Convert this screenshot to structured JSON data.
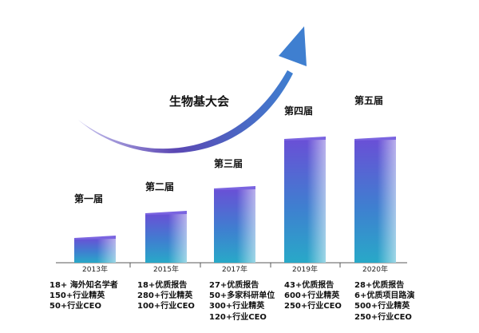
{
  "chart_data": {
    "type": "bar",
    "title": "生物基大会",
    "categories": [
      "2013年",
      "2015年",
      "2017年",
      "2019年",
      "2020年"
    ],
    "values": [
      1,
      2,
      3,
      5,
      5
    ],
    "editions": [
      "第一届",
      "第二届",
      "第三届",
      "第四届",
      "第五届"
    ],
    "annotations": [
      [
        "18+ 海外知名学者",
        "150+行业精英",
        "50+行业CEO"
      ],
      [
        "18+优质报告",
        "280+行业精英",
        "100+行业CEO"
      ],
      [
        "27+优质报告",
        "50+多家科研单位",
        "300+行业精英",
        "120+行业CEO"
      ],
      [
        "43+优质报告",
        "600+行业精英",
        "250+行业CEO"
      ],
      [
        "28+优质报告",
        "6+优质项目路演",
        "500+行业精英",
        "250+行业CEO"
      ]
    ],
    "colors": {
      "bar_top": "#6a4fd6",
      "bar_mid": "#3f7fd0",
      "bar_bottom": "#28a9c8",
      "arrow": "#4b3a9a"
    }
  }
}
